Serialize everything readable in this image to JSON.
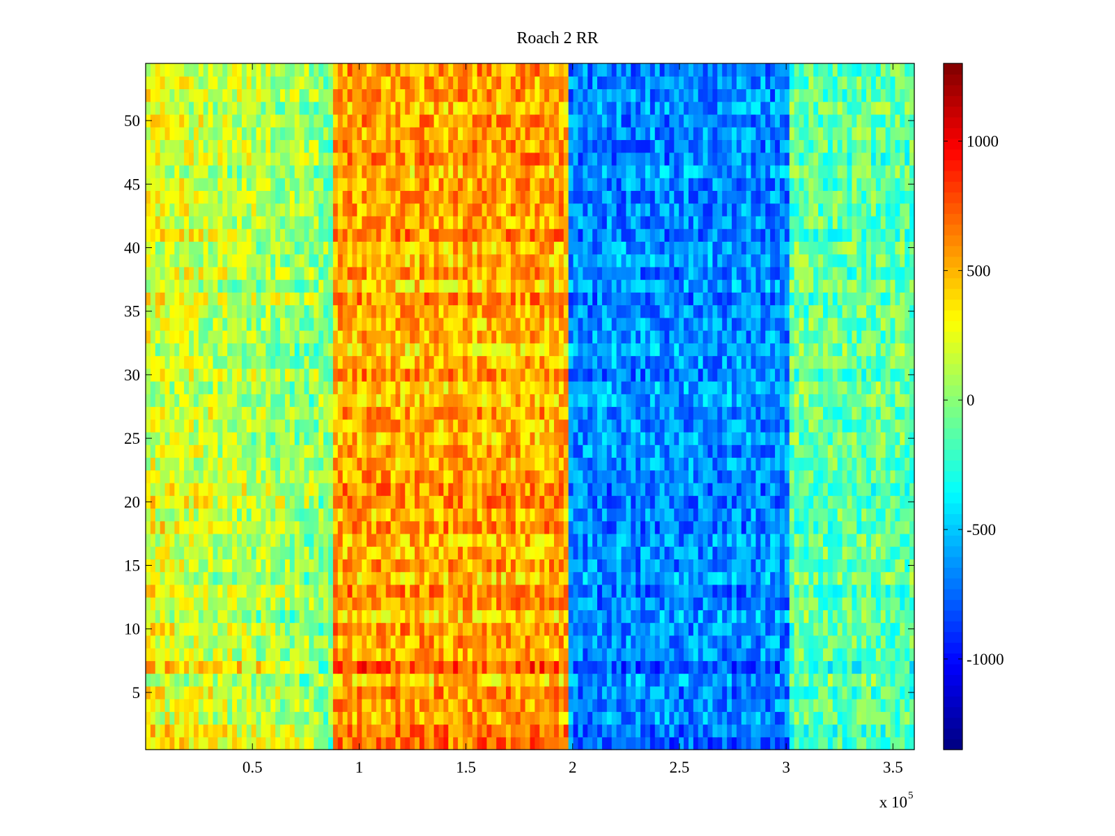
{
  "chart_data": {
    "type": "heatmap",
    "title": "Roach 2 RR",
    "xlabel": "",
    "ylabel": "",
    "x_range": [
      0,
      360000
    ],
    "y_range": [
      0.5,
      54.5
    ],
    "x_ticks": [
      50000,
      100000,
      150000,
      200000,
      250000,
      300000,
      350000
    ],
    "x_tick_labels": [
      "0.5",
      "1",
      "1.5",
      "2",
      "2.5",
      "3",
      "3.5"
    ],
    "x_exponent_label": "x 10",
    "x_exponent_power": "5",
    "y_ticks": [
      5,
      10,
      15,
      20,
      25,
      30,
      35,
      40,
      45,
      50
    ],
    "y_tick_labels": [
      "5",
      "10",
      "15",
      "20",
      "25",
      "30",
      "35",
      "40",
      "45",
      "50"
    ],
    "rows": 54,
    "colorbar": {
      "range": [
        -1350,
        1300
      ],
      "ticks": [
        1000,
        500,
        0,
        -500,
        -1000
      ],
      "tick_labels": [
        "1000",
        "500",
        "0",
        "-500",
        "-1000"
      ],
      "colormap": "jet"
    },
    "segments": [
      {
        "x_start": 0,
        "x_end": 88000,
        "mean_value": 100,
        "description_level": "green-yellow"
      },
      {
        "x_start": 88000,
        "x_end": 199000,
        "mean_value": 520,
        "description_level": "orange"
      },
      {
        "x_start": 199000,
        "x_end": 302000,
        "mean_value": -650,
        "description_level": "blue"
      },
      {
        "x_start": 302000,
        "x_end": 360000,
        "mean_value": -100,
        "description_level": "cyan-green"
      }
    ],
    "grid": false,
    "legend": "colorbar-right"
  }
}
